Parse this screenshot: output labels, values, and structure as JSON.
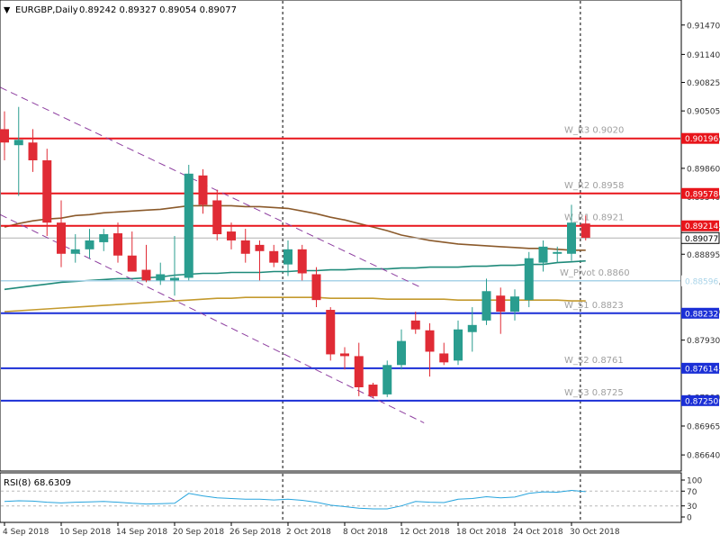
{
  "header": {
    "symbol": "EURGBP,Daily",
    "ohlc": "0.89242 0.89327 0.89054 0.89077",
    "arrow": "▼"
  },
  "colors": {
    "up": "#2a9d8f",
    "down": "#e02b35",
    "resistance": "#e8151b",
    "support": "#1b2fd6",
    "pivot": "#a8d3e8",
    "ma_fast": "#8b5a2b",
    "ma_mid": "#1f8a7a",
    "ma_slow": "#c49a2e",
    "channel": "#8e3fa0",
    "rsi": "#27a4dd",
    "axis_text": "#333333",
    "level_text": "#a0a0a0"
  },
  "chart_data": [
    {
      "type": "candlestick",
      "title": "EURGBP,Daily",
      "ylim": [
        0.8655,
        0.9165
      ],
      "y_ticks": [
        "0.91470",
        "0.91140",
        "0.90825",
        "0.90505",
        "0.90190",
        "0.89860",
        "0.89540",
        "0.89214",
        "0.88895",
        "0.88575",
        "0.88250",
        "0.87930",
        "0.87614",
        "0.87290",
        "0.86965",
        "0.86640"
      ],
      "y_tick_values": [
        0.9147,
        0.9114,
        0.90825,
        0.90505,
        0.9019,
        0.8986,
        0.8954,
        0.89214,
        0.88895,
        0.88575,
        0.8825,
        0.8793,
        0.87614,
        0.8729,
        0.86965,
        0.8664
      ],
      "x_labels": [
        "4 Sep 2018",
        "10 Sep 2018",
        "14 Sep 2018",
        "20 Sep 2018",
        "26 Sep 2018",
        "2 Oct 2018",
        "8 Oct 2018",
        "12 Oct 2018",
        "18 Oct 2018",
        "24 Oct 2018",
        "30 Oct 2018"
      ],
      "x_label_index": [
        0,
        4,
        8,
        12,
        16,
        20,
        24,
        28,
        32,
        36,
        40
      ],
      "dates": [
        "4 Sep 2018",
        "5 Sep 2018",
        "6 Sep 2018",
        "7 Sep 2018",
        "10 Sep 2018",
        "11 Sep 2018",
        "12 Sep 2018",
        "13 Sep 2018",
        "14 Sep 2018",
        "17 Sep 2018",
        "18 Sep 2018",
        "19 Sep 2018",
        "20 Sep 2018",
        "21 Sep 2018",
        "24 Sep 2018",
        "25 Sep 2018",
        "26 Sep 2018",
        "27 Sep 2018",
        "28 Sep 2018",
        "1 Oct 2018",
        "2 Oct 2018",
        "3 Oct 2018",
        "4 Oct 2018",
        "5 Oct 2018",
        "8 Oct 2018",
        "9 Oct 2018",
        "10 Oct 2018",
        "11 Oct 2018",
        "12 Oct 2018",
        "15 Oct 2018",
        "16 Oct 2018",
        "17 Oct 2018",
        "18 Oct 2018",
        "19 Oct 2018",
        "22 Oct 2018",
        "23 Oct 2018",
        "24 Oct 2018",
        "25 Oct 2018",
        "26 Oct 2018",
        "29 Oct 2018",
        "30 Oct 2018",
        "31 Oct 2018"
      ],
      "ohlc": [
        [
          0.903,
          0.905,
          0.8995,
          0.9015
        ],
        [
          0.9012,
          0.9055,
          0.8955,
          0.9018
        ],
        [
          0.9015,
          0.903,
          0.8982,
          0.8995
        ],
        [
          0.8995,
          0.9008,
          0.891,
          0.8925
        ],
        [
          0.8925,
          0.895,
          0.8875,
          0.889
        ],
        [
          0.889,
          0.8912,
          0.888,
          0.8895
        ],
        [
          0.8895,
          0.8918,
          0.8885,
          0.8905
        ],
        [
          0.8903,
          0.8918,
          0.8893,
          0.8912
        ],
        [
          0.8913,
          0.8925,
          0.888,
          0.8888
        ],
        [
          0.8888,
          0.8915,
          0.887,
          0.887
        ],
        [
          0.8872,
          0.89,
          0.8858,
          0.886
        ],
        [
          0.886,
          0.888,
          0.8855,
          0.8867
        ],
        [
          0.886,
          0.891,
          0.8843,
          0.8863
        ],
        [
          0.8863,
          0.899,
          0.886,
          0.898
        ],
        [
          0.8978,
          0.8985,
          0.8935,
          0.8945
        ],
        [
          0.895,
          0.8962,
          0.8905,
          0.8912
        ],
        [
          0.8915,
          0.8925,
          0.8895,
          0.8905
        ],
        [
          0.8905,
          0.8918,
          0.888,
          0.889
        ],
        [
          0.89,
          0.8905,
          0.886,
          0.8893
        ],
        [
          0.8893,
          0.89,
          0.8875,
          0.888
        ],
        [
          0.8878,
          0.8905,
          0.8865,
          0.8895
        ],
        [
          0.8895,
          0.89,
          0.886,
          0.8868
        ],
        [
          0.8867,
          0.8875,
          0.883,
          0.8838
        ],
        [
          0.8827,
          0.883,
          0.877,
          0.8777
        ],
        [
          0.8778,
          0.8785,
          0.876,
          0.8775
        ],
        [
          0.8775,
          0.879,
          0.873,
          0.874
        ],
        [
          0.8743,
          0.8745,
          0.8728,
          0.873
        ],
        [
          0.8732,
          0.877,
          0.8729,
          0.8765
        ],
        [
          0.8765,
          0.8805,
          0.876,
          0.8792
        ],
        [
          0.8815,
          0.8825,
          0.88,
          0.8805
        ],
        [
          0.8804,
          0.8812,
          0.8752,
          0.878
        ],
        [
          0.8778,
          0.879,
          0.8765,
          0.8768
        ],
        [
          0.877,
          0.8815,
          0.8765,
          0.8805
        ],
        [
          0.8802,
          0.883,
          0.878,
          0.881
        ],
        [
          0.8815,
          0.8862,
          0.881,
          0.8848
        ],
        [
          0.8843,
          0.8852,
          0.88,
          0.8825
        ],
        [
          0.8825,
          0.885,
          0.8815,
          0.8842
        ],
        [
          0.8838,
          0.8892,
          0.883,
          0.8885
        ],
        [
          0.888,
          0.8905,
          0.887,
          0.8898
        ],
        [
          0.889,
          0.8898,
          0.888,
          0.8892
        ],
        [
          0.889,
          0.8945,
          0.8882,
          0.8925
        ],
        [
          0.8924,
          0.8933,
          0.8905,
          0.8908
        ]
      ],
      "moving_averages": [
        {
          "name": "ma_fast",
          "values": [
            0.892,
            0.8924,
            0.8927,
            0.8929,
            0.893,
            0.8933,
            0.8934,
            0.8936,
            0.8937,
            0.8938,
            0.8939,
            0.894,
            0.8942,
            0.8944,
            0.8944,
            0.8944,
            0.8944,
            0.8943,
            0.8943,
            0.8942,
            0.8941,
            0.8938,
            0.8935,
            0.8931,
            0.8928,
            0.8924,
            0.892,
            0.8916,
            0.8911,
            0.8908,
            0.8905,
            0.8903,
            0.8901,
            0.89,
            0.8899,
            0.8898,
            0.8897,
            0.8896,
            0.8896,
            0.8895,
            0.8894,
            0.8894
          ]
        },
        {
          "name": "ma_mid",
          "values": [
            0.885,
            0.8852,
            0.8854,
            0.8856,
            0.8858,
            0.8859,
            0.886,
            0.8861,
            0.8862,
            0.8862,
            0.8863,
            0.8864,
            0.8866,
            0.8867,
            0.8868,
            0.8868,
            0.8869,
            0.8869,
            0.8869,
            0.887,
            0.887,
            0.8871,
            0.8871,
            0.8872,
            0.8872,
            0.8873,
            0.8873,
            0.8873,
            0.8874,
            0.8874,
            0.8875,
            0.8875,
            0.8875,
            0.8876,
            0.8876,
            0.8877,
            0.8877,
            0.8878,
            0.8878,
            0.888,
            0.8881,
            0.8882
          ]
        },
        {
          "name": "ma_slow",
          "values": [
            0.8825,
            0.8826,
            0.8827,
            0.8828,
            0.8829,
            0.883,
            0.8831,
            0.8832,
            0.8833,
            0.8834,
            0.8835,
            0.8836,
            0.8837,
            0.8838,
            0.8839,
            0.884,
            0.884,
            0.8841,
            0.8841,
            0.8841,
            0.8841,
            0.8841,
            0.8841,
            0.884,
            0.884,
            0.884,
            0.884,
            0.8839,
            0.8839,
            0.8839,
            0.8839,
            0.8839,
            0.8838,
            0.8838,
            0.8838,
            0.8838,
            0.8838,
            0.8838,
            0.8838,
            0.8838,
            0.8837,
            0.8837
          ]
        }
      ],
      "channel_lines": [
        {
          "name": "upper",
          "x": [
            -0.3,
            29.4
          ],
          "y": [
            0.9077,
            0.8852
          ]
        },
        {
          "name": "lower",
          "x": [
            -0.3,
            29.6
          ],
          "y": [
            0.8934,
            0.87
          ]
        }
      ],
      "levels": [
        {
          "name": "W_R3",
          "label": "W_R3 0.9020",
          "axis_label": "0.90196",
          "value": 0.90196,
          "kind": "resistance"
        },
        {
          "name": "W_R2",
          "label": "W_R2 0.8958",
          "axis_label": "0.89578",
          "value": 0.89578,
          "kind": "resistance"
        },
        {
          "name": "W_R1",
          "label": "W_R1 0.8921",
          "axis_label": "0.89214",
          "value": 0.89214,
          "kind": "resistance"
        },
        {
          "name": "W_Pivot",
          "label": "W_Pivot 0.8860",
          "axis_label": "0.88596",
          "value": 0.88596,
          "kind": "pivot"
        },
        {
          "name": "W_S1",
          "label": "W_S1 0.8823",
          "axis_label": "0.88232",
          "value": 0.88232,
          "kind": "support"
        },
        {
          "name": "W_S2",
          "label": "W_S2 0.8761",
          "axis_label": "0.87614",
          "value": 0.87614,
          "kind": "support"
        },
        {
          "name": "W_S3",
          "label": "W_S3 0.8725",
          "axis_label": "0.87250",
          "value": 0.8725,
          "kind": "support"
        }
      ],
      "current_price": {
        "value": 0.89077,
        "label": "0.89077"
      },
      "period_separators": [
        20,
        41
      ],
      "grid": false
    },
    {
      "type": "line",
      "title": "RSI(8) 68.6309",
      "ylim": [
        0,
        100
      ],
      "y_ticks": [
        "100",
        "70",
        "30",
        "0"
      ],
      "y_tick_values": [
        100,
        70,
        30,
        0
      ],
      "reference_levels": [
        70,
        30
      ],
      "series": [
        {
          "name": "RSI(8)",
          "values": [
            42,
            44,
            43,
            40,
            38,
            40,
            41,
            42,
            40,
            37,
            35,
            36,
            37,
            64,
            57,
            52,
            50,
            48,
            48,
            46,
            48,
            45,
            40,
            32,
            28,
            24,
            22,
            22,
            30,
            42,
            40,
            39,
            48,
            50,
            55,
            52,
            54,
            64,
            68,
            67,
            72,
            68.6
          ]
        }
      ]
    }
  ]
}
